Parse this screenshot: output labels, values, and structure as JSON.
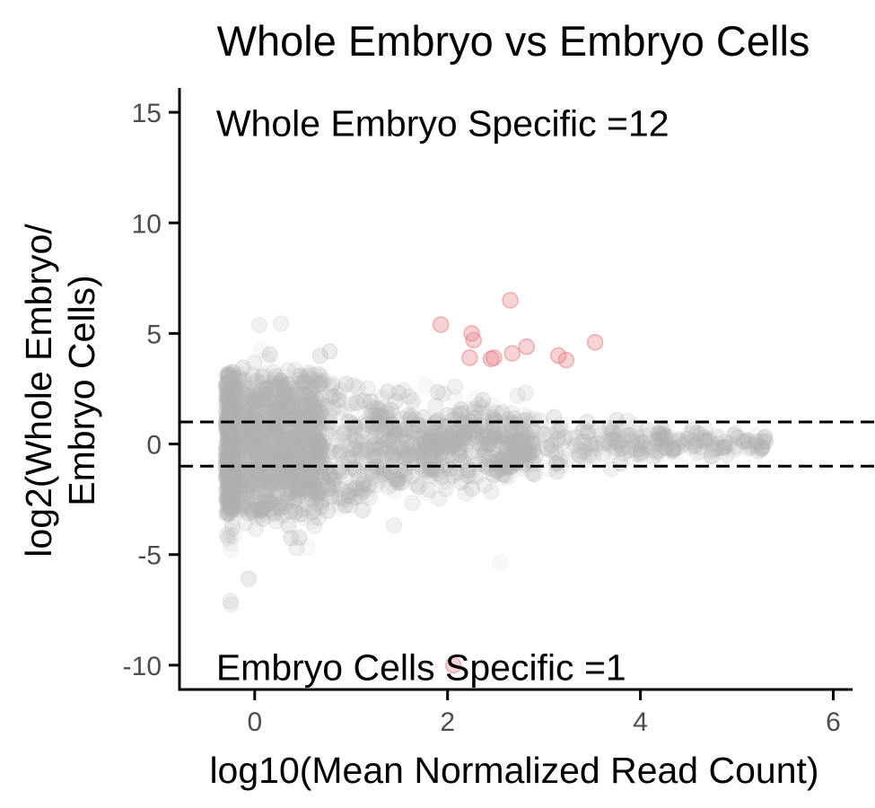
{
  "chart_data": {
    "type": "scatter",
    "title": "Whole Embryo vs Embryo Cells",
    "xlabel": "log10(Mean Normalized Read Count)",
    "ylabel_lines": [
      "log2(Whole Embryo/",
      "Embryo Cells)"
    ],
    "xlim": [
      -0.78,
      6.2
    ],
    "ylim": [
      -11.1,
      16.1
    ],
    "x_ticks": [
      0,
      2,
      4,
      6
    ],
    "y_ticks": [
      -10,
      -5,
      0,
      5,
      10,
      15
    ],
    "x_tick_labels": [
      "0",
      "2",
      "4",
      "6"
    ],
    "y_tick_labels": [
      "-10",
      "-5",
      "0",
      "5",
      "10",
      "15"
    ],
    "grid": false,
    "threshold_lines_y": [
      1,
      -1
    ],
    "annotations": [
      {
        "text": "Whole Embryo Specific =12",
        "x": -0.4,
        "y": 14.5
      },
      {
        "text": "Embryo Cells Specific =1",
        "x": -0.4,
        "y": -10.1
      }
    ],
    "colors": {
      "background_points": "#b3b3b3",
      "specific_points": "#e8828a",
      "threshold_line": "#000000",
      "axis": "#000000"
    },
    "background_cloud": {
      "description_free": true,
      "n_points": 4200,
      "x_range": [
        -0.3,
        5.3
      ],
      "spread_envelope": [
        [
          -0.3,
          3.0
        ],
        [
          0.5,
          2.9
        ],
        [
          1.5,
          2.1
        ],
        [
          2.5,
          1.5
        ],
        [
          3.5,
          1.0
        ],
        [
          4.5,
          0.55
        ],
        [
          5.3,
          0.3
        ]
      ]
    },
    "highlighted_points": [
      {
        "x": 1.93,
        "y": 5.4
      },
      {
        "x": 2.25,
        "y": 5.0
      },
      {
        "x": 2.27,
        "y": 4.7
      },
      {
        "x": 2.23,
        "y": 3.9
      },
      {
        "x": 2.45,
        "y": 3.85
      },
      {
        "x": 2.48,
        "y": 3.9
      },
      {
        "x": 2.65,
        "y": 6.5
      },
      {
        "x": 2.67,
        "y": 4.1
      },
      {
        "x": 2.82,
        "y": 4.4
      },
      {
        "x": 3.15,
        "y": 4.0
      },
      {
        "x": 3.23,
        "y": 3.8
      },
      {
        "x": 3.53,
        "y": 4.6
      },
      {
        "x": 2.06,
        "y": -10.0
      }
    ]
  }
}
